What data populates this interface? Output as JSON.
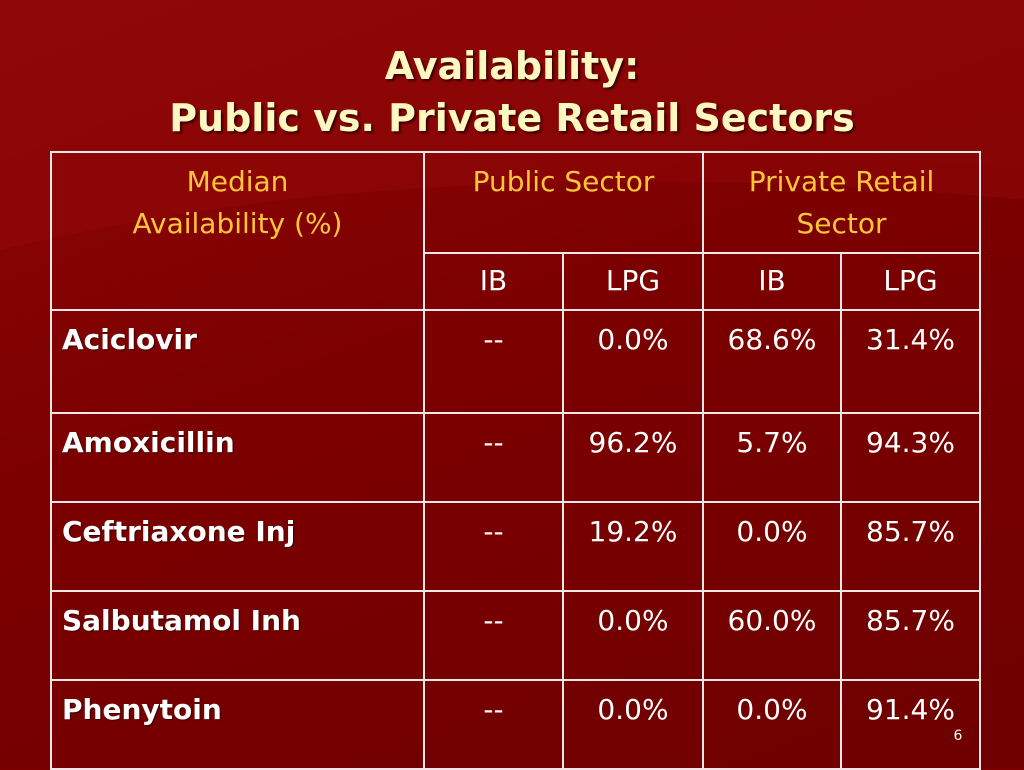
{
  "slide": {
    "title_line1": "Availability:",
    "title_line2": "Public vs. Private Retail Sectors",
    "page_number": "6",
    "colors": {
      "background": "#7a0000",
      "title": "#fff7c0",
      "header_text": "#ffc63a",
      "border": "#f4e6e6"
    }
  },
  "table": {
    "corner_header_line1": "Median",
    "corner_header_line2": "Availability  (%)",
    "group_headers": {
      "public_line1": "Public Sector",
      "private_line1": "Private Retail",
      "private_line2": "Sector"
    },
    "sub_headers": {
      "public_ib": "IB",
      "public_lpg": "LPG",
      "private_ib": "IB",
      "private_lpg": "LPG"
    },
    "rows": [
      {
        "drug": "Aciclovir",
        "public_ib": "--",
        "public_lpg": "0.0%",
        "private_ib": "68.6%",
        "private_lpg": "31.4%"
      },
      {
        "drug": "Amoxicillin",
        "public_ib": "--",
        "public_lpg": "96.2%",
        "private_ib": "5.7%",
        "private_lpg": "94.3%"
      },
      {
        "drug": "Ceftriaxone Inj",
        "public_ib": "--",
        "public_lpg": "19.2%",
        "private_ib": "0.0%",
        "private_lpg": "85.7%"
      },
      {
        "drug": "Salbutamol Inh",
        "public_ib": "--",
        "public_lpg": "0.0%",
        "private_ib": "60.0%",
        "private_lpg": "85.7%"
      },
      {
        "drug": "Phenytoin",
        "public_ib": "--",
        "public_lpg": "0.0%",
        "private_ib": "0.0%",
        "private_lpg": "91.4%"
      }
    ]
  }
}
